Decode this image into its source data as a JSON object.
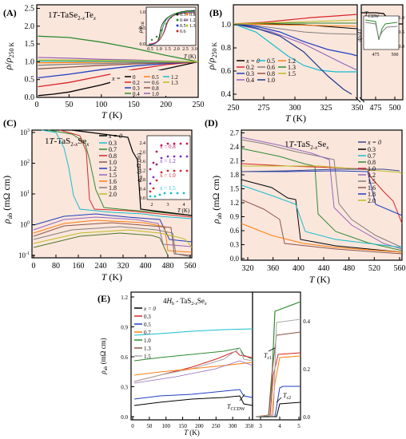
{
  "chart_data": [
    {
      "panel": "(A)",
      "type": "line",
      "title": "1T-TaSe2-xTex",
      "xlabel": "T (K)",
      "ylabel": "ρ/ρ250 K",
      "xlim": [
        0,
        250
      ],
      "ylim": [
        0,
        2.6
      ],
      "xticks": [
        "0",
        "50",
        "100",
        "150",
        "200",
        "250"
      ],
      "yticks": [
        "0.0",
        "0.5",
        "1.0",
        "1.5",
        "2.0",
        "2.5"
      ],
      "legend_title": "x =",
      "legend_items": [
        "0",
        "0.2",
        "0.3",
        "0.4",
        "0.5",
        "0.6",
        "0.8",
        "1.0",
        "1.2",
        "1.3"
      ],
      "series": [
        {
          "name": "0",
          "color": "#000000",
          "x": [
            2,
            25,
            50,
            100,
            150,
            200,
            250
          ],
          "y": [
            0.05,
            0.09,
            0.15,
            0.35,
            0.6,
            0.8,
            1.0
          ]
        },
        {
          "name": "0.2",
          "color": "#d62728",
          "x": [
            2,
            50,
            100,
            150,
            200,
            250
          ],
          "y": [
            0.3,
            0.42,
            0.6,
            0.78,
            0.92,
            1.0
          ]
        },
        {
          "name": "0.3",
          "color": "#1f3fbf",
          "x": [
            2,
            50,
            100,
            150,
            200,
            250
          ],
          "y": [
            0.55,
            0.65,
            0.78,
            0.88,
            0.95,
            1.0
          ]
        },
        {
          "name": "0.4",
          "color": "#2e8b2e",
          "x": [
            2,
            50,
            100,
            150,
            200,
            250
          ],
          "y": [
            1.72,
            1.68,
            1.55,
            1.38,
            1.18,
            1.0
          ]
        },
        {
          "name": "0.5",
          "color": "#ff7f0e",
          "x": [
            2,
            50,
            100,
            150,
            200,
            250
          ],
          "y": [
            0.97,
            0.98,
            0.99,
            1.0,
            1.0,
            1.0
          ]
        },
        {
          "name": "0.6",
          "color": "#7f7f7f",
          "x": [
            2,
            50,
            100,
            150,
            200,
            250
          ],
          "y": [
            0.9,
            0.93,
            0.95,
            0.97,
            0.99,
            1.0
          ]
        },
        {
          "name": "0.8",
          "color": "#8c564b",
          "x": [
            2,
            50,
            100,
            150,
            200,
            250
          ],
          "y": [
            0.8,
            0.85,
            0.9,
            0.94,
            0.97,
            1.0
          ]
        },
        {
          "name": "1.0",
          "color": "#9467bd",
          "x": [
            2,
            50,
            100,
            150,
            200,
            250
          ],
          "y": [
            1.12,
            1.1,
            1.07,
            1.05,
            1.02,
            1.0
          ]
        },
        {
          "name": "1.2",
          "color": "#17becf",
          "x": [
            2,
            50,
            100,
            150,
            200,
            250
          ],
          "y": [
            1.02,
            1.02,
            1.01,
            1.01,
            1.0,
            1.0
          ]
        },
        {
          "name": "1.3",
          "color": "#bcbd22",
          "x": [
            2,
            50,
            100,
            150,
            200,
            250
          ],
          "y": [
            1.05,
            1.05,
            1.04,
            1.03,
            1.01,
            1.0
          ]
        }
      ],
      "inset": {
        "xlabel": "T (K)",
        "ylabel": "ρ/ρ1K",
        "xticks": [
          "0.5",
          "1.0",
          "1.5",
          "2.0",
          "2.5",
          "3.0"
        ],
        "yticks": [
          "0.0",
          "0.5",
          "1.0"
        ],
        "legend_items": [
          "0.3",
          "0.4",
          "0.5",
          "0.6",
          "0.8",
          "1.2",
          "1.3"
        ]
      }
    },
    {
      "panel": "(B)",
      "type": "line",
      "xlabel": "T (K)",
      "ylabel": "ρ/ρ250 K",
      "xticks": [
        "250",
        "275",
        "300",
        "325",
        "350",
        "475",
        "500"
      ],
      "yticks": [
        "0.4",
        "0.6",
        "0.8",
        "1.0"
      ],
      "legend_title": "x = 0",
      "legend_items": [
        "0.2",
        "0.3",
        "0.4",
        "0.5",
        "0.6",
        "0.8",
        "1.0",
        "1.2",
        "1.3",
        "1.5"
      ],
      "annotation": "TCDW",
      "inset": {
        "xticks": [
          "475",
          "500"
        ],
        "yticks": [
          "0.0",
          "0.5",
          "1.0"
        ],
        "ylabel": "dρ/dT",
        "annotation": "TCDW"
      }
    },
    {
      "panel": "(C)",
      "type": "line",
      "title": "1T-TaS2-xSex",
      "xlabel": "T (K)",
      "ylabel": "ρab (mΩ cm)",
      "yscale": "log",
      "xticks": [
        "0",
        "80",
        "160",
        "240",
        "320",
        "400",
        "480",
        "560"
      ],
      "yticks": [
        "10-1",
        "100",
        "101",
        "102",
        "103"
      ],
      "legend_title": "x = 0",
      "legend_items": [
        "0.3",
        "0.7",
        "0.8",
        "1.0",
        "1.2",
        "1.5",
        "1.6",
        "1.8",
        "2.0"
      ],
      "inset": {
        "xlabel": "T (K)",
        "ylabel": "ρab (mΩ cm)",
        "xticks": [
          "2",
          "3",
          "4"
        ],
        "yticks": [
          "0.0",
          "0.4",
          "0.8",
          "1.2",
          "1.6",
          "2.0",
          "2.4"
        ],
        "labels": [
          "x = 0.8",
          "x = 1.2",
          "x = 1.0",
          "x = 1.5"
        ]
      }
    },
    {
      "panel": "(D)",
      "type": "line",
      "title": "1T-TaS2-xSex",
      "xlabel": "T (K)",
      "ylabel": "ρab (mΩ cm)",
      "xticks": [
        "320",
        "360",
        "400",
        "440",
        "480",
        "520",
        "560"
      ],
      "yticks": [
        "0.0",
        "0.3",
        "0.6",
        "0.9",
        "1.2",
        "1.5",
        "1.8",
        "2.1",
        "2.4",
        "2.7"
      ],
      "legend_title": "x = 0",
      "legend_items": [
        "0.3",
        "0.7",
        "0.8",
        "1.0",
        "1.2",
        "1.5",
        "1.6",
        "1.8",
        "2.0"
      ]
    },
    {
      "panel": "(E)",
      "type": "line",
      "title": "4Hb - TaS2-xSex",
      "xlabel": "T (K)",
      "ylabel": "ρab (mΩ cm)",
      "xticks": [
        "0",
        "50",
        "100",
        "150",
        "200",
        "250",
        "300",
        "350"
      ],
      "yticks": [
        "0.0",
        "0.3",
        "0.6",
        "0.9",
        "1.2"
      ],
      "legend_title": "x = 0",
      "legend_items": [
        "0.3",
        "0.5",
        "0.7",
        "1.0",
        "1.3",
        "1.5"
      ],
      "annotations": [
        "TCCDW",
        "Tc1",
        "Tc2"
      ],
      "right_panel": {
        "xticks": [
          "3",
          "4",
          "5"
        ],
        "yticks": [
          "0.0",
          "0.2",
          "0.4"
        ]
      }
    }
  ]
}
